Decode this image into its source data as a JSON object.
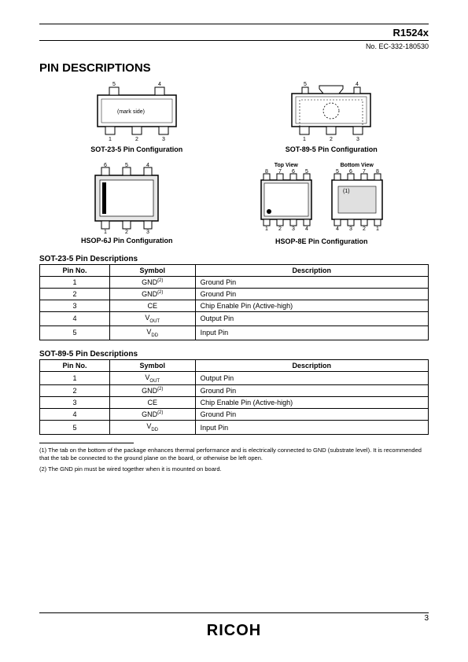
{
  "header": {
    "part": "R1524x",
    "docno": "No. EC-332-180530"
  },
  "section": "PIN DESCRIPTIONS",
  "figs": {
    "sot235": {
      "caption": "SOT-23-5 Pin Configuration",
      "mark": "(mark side)",
      "top": [
        "5",
        "4"
      ],
      "bot": [
        "1",
        "2",
        "3"
      ]
    },
    "sot895": {
      "caption": "SOT-89-5 Pin Configuration",
      "top": [
        "5",
        "4"
      ],
      "bot": [
        "1",
        "2",
        "3"
      ]
    },
    "hsop6j": {
      "caption": "HSOP-6J Pin Configuration",
      "top": [
        "6",
        "5",
        "4"
      ],
      "bot": [
        "1",
        "2",
        "3"
      ]
    },
    "hsop8e": {
      "caption": "HSOP-8E Pin Configuration",
      "topview": "Top View",
      "botview": "Bottom View",
      "top_t": [
        "8",
        "7",
        "6",
        "5"
      ],
      "top_b": [
        "1",
        "2",
        "3",
        "4"
      ],
      "bot_t": [
        "5",
        "6",
        "7",
        "8"
      ],
      "bot_b": [
        "4",
        "3",
        "2",
        "1"
      ],
      "mark": "(1)"
    }
  },
  "tables": {
    "t1": {
      "title": "SOT-23-5 Pin Descriptions",
      "headers": [
        "Pin No.",
        "Symbol",
        "Description"
      ],
      "rows": [
        [
          "1",
          "GND<sup>(2)</sup>",
          "Ground Pin"
        ],
        [
          "2",
          "GND<sup>(2)</sup>",
          "Ground Pin"
        ],
        [
          "3",
          "CE",
          "Chip Enable Pin (Active-high)"
        ],
        [
          "4",
          "V<sub>OUT</sub>",
          "Output Pin"
        ],
        [
          "5",
          "V<sub>DD</sub>",
          "Input Pin"
        ]
      ]
    },
    "t2": {
      "title": "SOT-89-5 Pin Descriptions",
      "headers": [
        "Pin No.",
        "Symbol",
        "Description"
      ],
      "rows": [
        [
          "1",
          "V<sub>OUT</sub>",
          "Output Pin"
        ],
        [
          "2",
          "GND<sup>(2)</sup>",
          "Ground Pin"
        ],
        [
          "3",
          "CE",
          "Chip Enable Pin (Active-high)"
        ],
        [
          "4",
          "GND<sup>(2)</sup>",
          "Ground Pin"
        ],
        [
          "5",
          "V<sub>DD</sub>",
          "Input Pin"
        ]
      ]
    }
  },
  "footnotes": {
    "f1": "(1) The tab on the bottom of the package enhances thermal performance and is electrically connected to GND (substrate level). It is recommended that the tab be connected to the ground plane on the board, or otherwise be left open.",
    "f2": "(2) The GND pin must be wired together when it is mounted on board."
  },
  "logo": "RICOH",
  "page": "3",
  "colors": {
    "text": "#000000",
    "bg": "#ffffff",
    "gray": "#e0e0e0"
  },
  "table_col_widths": [
    "18%",
    "22%",
    "60%"
  ]
}
